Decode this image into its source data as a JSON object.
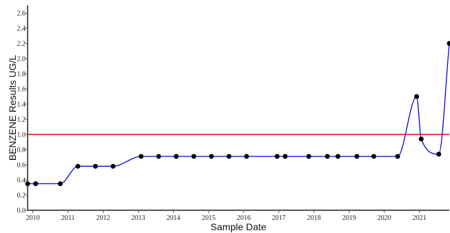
{
  "chart_data": {
    "type": "line",
    "title": "",
    "xlabel": "Sample Date",
    "ylabel": "BENZENE Results UG/L",
    "xlim": [
      2009.85,
      2021.85
    ],
    "ylim": [
      0,
      2.7
    ],
    "x_ticks": [
      2010,
      2011,
      2012,
      2013,
      2014,
      2015,
      2016,
      2017,
      2018,
      2019,
      2020,
      2021
    ],
    "x_tick_labels": [
      "2010",
      "2011",
      "2012",
      "2013",
      "2014",
      "2015",
      "2016",
      "2017",
      "2018",
      "2019",
      "2020",
      "2021"
    ],
    "y_ticks": [
      0.0,
      0.2,
      0.4,
      0.6,
      0.8,
      1.0,
      1.2,
      1.4,
      1.6,
      1.8,
      2.0,
      2.2,
      2.4,
      2.6
    ],
    "y_tick_labels": [
      "0.0",
      "0.2",
      "0.4",
      "0.6",
      "0.8",
      "1.0",
      "1.2",
      "1.4",
      "1.6",
      "1.8",
      "2.0",
      "2.2",
      "2.4",
      "2.6"
    ],
    "grid": false,
    "series": [
      {
        "color": "#0000ee",
        "marker_color": "#000000",
        "x": [
          2009.85,
          2010.08,
          2010.78,
          2011.28,
          2011.78,
          2012.28,
          2013.08,
          2013.58,
          2014.08,
          2014.58,
          2015.08,
          2015.58,
          2016.08,
          2016.95,
          2017.18,
          2017.85,
          2018.38,
          2018.68,
          2019.22,
          2019.7,
          2020.38,
          2020.92,
          2021.05,
          2021.55,
          2021.85
        ],
        "y": [
          0.35,
          0.35,
          0.35,
          0.58,
          0.58,
          0.58,
          0.71,
          0.71,
          0.71,
          0.71,
          0.71,
          0.71,
          0.71,
          0.71,
          0.71,
          0.71,
          0.71,
          0.71,
          0.71,
          0.71,
          0.71,
          1.5,
          0.94,
          0.74,
          2.2
        ]
      }
    ],
    "reference_line": {
      "y": 1.0,
      "color": "#ee0000"
    }
  }
}
